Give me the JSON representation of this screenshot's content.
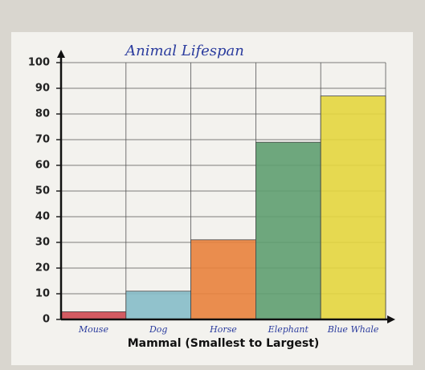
{
  "chart_data": {
    "type": "bar",
    "title": "Animal Lifespan",
    "x_label": "Mammal (Smallest to Largest)",
    "categories": [
      "Mouse",
      "Dog",
      "Horse",
      "Elephant",
      "Blue Whale"
    ],
    "values": [
      3,
      11,
      31,
      69,
      87
    ],
    "colors": [
      "#cf4a52",
      "#86bcc8",
      "#e9823c",
      "#5f9f70",
      "#e4d63e"
    ],
    "ylim": [
      0,
      100
    ],
    "yticks": [
      0,
      10,
      20,
      30,
      40,
      50,
      60,
      70,
      80,
      90,
      100
    ],
    "grid": true
  }
}
